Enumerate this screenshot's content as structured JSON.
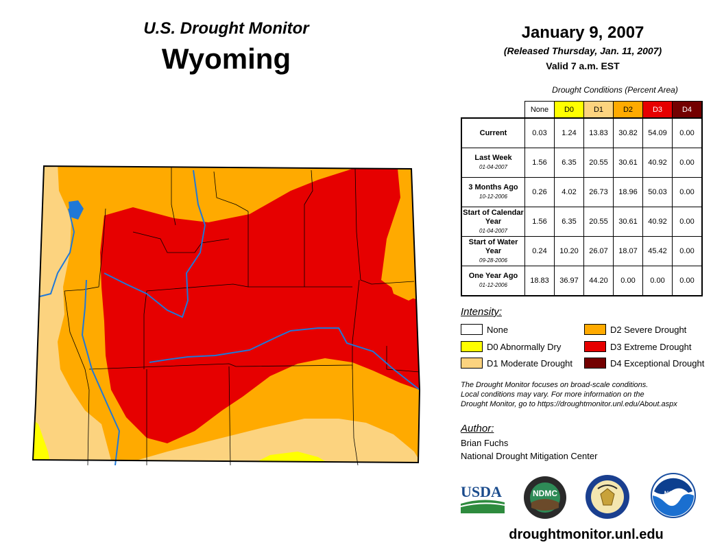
{
  "header": {
    "subtitle": "U.S. Drought Monitor",
    "state": "Wyoming",
    "date": "January 9, 2007",
    "released": "(Released Thursday, Jan. 11, 2007)",
    "valid": "Valid 7 a.m. EST"
  },
  "table": {
    "caption": "Drought Conditions (Percent Area)",
    "columns": [
      "None",
      "D0",
      "D1",
      "D2",
      "D3",
      "D4"
    ],
    "column_colors": [
      "#ffffff",
      "#ffff00",
      "#fcd37f",
      "#ffaa00",
      "#e60000",
      "#730000"
    ],
    "rows": [
      {
        "label": "Current",
        "date": "",
        "values": [
          "0.03",
          "1.24",
          "13.83",
          "30.82",
          "54.09",
          "0.00"
        ]
      },
      {
        "label": "Last Week",
        "date": "01-04-2007",
        "values": [
          "1.56",
          "6.35",
          "20.55",
          "30.61",
          "40.92",
          "0.00"
        ]
      },
      {
        "label": "3 Months Ago",
        "date": "10-12-2006",
        "values": [
          "0.26",
          "4.02",
          "26.73",
          "18.96",
          "50.03",
          "0.00"
        ]
      },
      {
        "label": "Start of Calendar Year",
        "date": "01-04-2007",
        "values": [
          "1.56",
          "6.35",
          "20.55",
          "30.61",
          "40.92",
          "0.00"
        ]
      },
      {
        "label": "Start of Water Year",
        "date": "09-28-2006",
        "values": [
          "0.24",
          "10.20",
          "26.07",
          "18.07",
          "45.42",
          "0.00"
        ]
      },
      {
        "label": "One Year Ago",
        "date": "01-12-2006",
        "values": [
          "18.83",
          "36.97",
          "44.20",
          "0.00",
          "0.00",
          "0.00"
        ]
      }
    ]
  },
  "legend": {
    "title": "Intensity:",
    "items": [
      {
        "label": "None",
        "color": "#ffffff"
      },
      {
        "label": "D0 Abnormally Dry",
        "color": "#ffff00"
      },
      {
        "label": "D1 Moderate Drought",
        "color": "#fcd37f"
      },
      {
        "label": "D2 Severe Drought",
        "color": "#ffaa00"
      },
      {
        "label": "D3 Extreme Drought",
        "color": "#e60000"
      },
      {
        "label": "D4 Exceptional Drought",
        "color": "#730000"
      }
    ]
  },
  "footnote": {
    "line1": "The Drought Monitor focuses on broad-scale conditions.",
    "line2": "Local conditions may vary. For more information on the",
    "line3": "Drought Monitor, go to https://droughtmonitor.unl.edu/About.aspx"
  },
  "author": {
    "title": "Author:",
    "name": "Brian Fuchs",
    "org": "National Drought Mitigation Center"
  },
  "logos": {
    "usda": "USDA",
    "ndmc": "NDMC",
    "noaa": "NOAA"
  },
  "url": "droughtmonitor.unl.edu",
  "colors": {
    "water": "#1f78d8",
    "border": "#000000"
  }
}
